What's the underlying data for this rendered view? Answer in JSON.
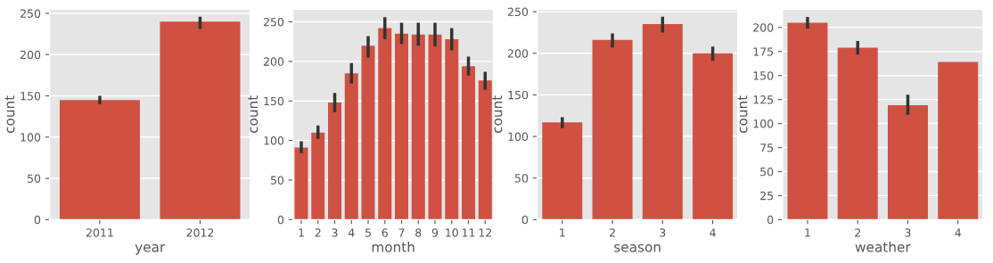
{
  "chart_data": [
    {
      "type": "bar",
      "xlabel": "year",
      "ylabel": "count",
      "categories": [
        "2011",
        "2012"
      ],
      "values": [
        145,
        240
      ],
      "errors": [
        [
          140,
          150
        ],
        [
          231,
          246
        ]
      ],
      "color": "#cf5141",
      "ylim": [
        0,
        255
      ],
      "yticks": [
        0,
        50,
        100,
        150,
        200,
        250
      ],
      "grid": "y"
    },
    {
      "type": "bar",
      "xlabel": "month",
      "ylabel": "count",
      "categories": [
        "1",
        "2",
        "3",
        "4",
        "5",
        "6",
        "7",
        "8",
        "9",
        "10",
        "11",
        "12"
      ],
      "values": [
        91,
        110,
        148,
        185,
        220,
        242,
        235,
        234,
        234,
        228,
        194,
        176
      ],
      "errors": [
        [
          84,
          99
        ],
        [
          102,
          119
        ],
        [
          136,
          160
        ],
        [
          172,
          198
        ],
        [
          205,
          232
        ],
        [
          228,
          256
        ],
        [
          222,
          249
        ],
        [
          220,
          249
        ],
        [
          219,
          249
        ],
        [
          214,
          242
        ],
        [
          182,
          206
        ],
        [
          164,
          187
        ]
      ],
      "color": "#cf5141",
      "ylim": [
        0,
        266
      ],
      "yticks": [
        0,
        50,
        100,
        150,
        200,
        250
      ],
      "grid": "y"
    },
    {
      "type": "bar",
      "xlabel": "season",
      "ylabel": "count",
      "categories": [
        "1",
        "2",
        "3",
        "4"
      ],
      "values": [
        117,
        216,
        235,
        200
      ],
      "errors": [
        [
          110,
          123
        ],
        [
          207,
          224
        ],
        [
          225,
          244
        ],
        [
          191,
          208
        ]
      ],
      "color": "#cf5141",
      "ylim": [
        0,
        253
      ],
      "yticks": [
        0,
        50,
        100,
        150,
        200,
        250
      ],
      "grid": "y"
    },
    {
      "type": "bar",
      "xlabel": "weather",
      "ylabel": "count",
      "categories": [
        "1",
        "2",
        "3",
        "4"
      ],
      "values": [
        205,
        179,
        119,
        164
      ],
      "errors": [
        [
          199,
          211
        ],
        [
          172,
          186
        ],
        [
          109,
          130
        ],
        null
      ],
      "color": "#cf5141",
      "ylim": [
        0,
        219
      ],
      "yticks": [
        0,
        25,
        50,
        75,
        100,
        125,
        150,
        175,
        200
      ],
      "grid": "y"
    }
  ]
}
